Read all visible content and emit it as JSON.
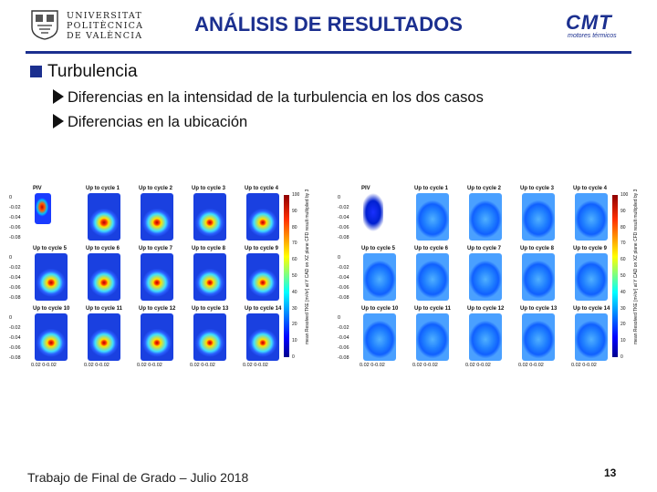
{
  "header": {
    "title": "ANÁLISIS DE RESULTADOS",
    "upv_logo_text": "UNIVERSITAT\nPOLITÈCNICA\nDE VALÈNCIA",
    "cmt_logo_text": "CMT",
    "cmt_logo_subtitle": "motores térmicos",
    "accent_color": "#1b2f8f"
  },
  "bullets": {
    "level1": "Turbulencia",
    "level2": [
      "Diferencias en la intensidad de la turbulencia en los dos casos",
      "Diferencias en la ubicación"
    ]
  },
  "figure": {
    "cell_titles": [
      "PIV",
      "Up to cycle 1",
      "Up to cycle 2",
      "Up to cycle 3",
      "Up to cycle 4",
      "Up to cycle 5",
      "Up to cycle 6",
      "Up to cycle 7",
      "Up to cycle 8",
      "Up to cycle 9",
      "Up to cycle 10",
      "Up to cycle 11",
      "Up to cycle 12",
      "Up to cycle 13",
      "Up to cycle 14"
    ],
    "y_ticks": [
      "0",
      "-0.02",
      "-0.04",
      "-0.06",
      "-0.08"
    ],
    "x_tick": "0.02 0-0.02",
    "colorbar_ticks": [
      "100",
      "90",
      "80",
      "70",
      "60",
      "50",
      "40",
      "30",
      "20",
      "10",
      "0"
    ],
    "left_colorbar_label": "mean Resolved TKE [m²/s²] at Y CAD on XZ plane CFD result multiplied by 3",
    "right_colorbar_label": "mean Resolved TKE [m²/s²] at Y CAD on XZ plane CFD result multiplied by 3",
    "left_intensity": [
      0.95,
      0.9,
      0.8,
      0.75,
      0.7,
      0.8,
      0.78,
      0.72,
      0.7,
      0.68,
      0.75,
      0.72,
      0.7,
      0.68,
      0.66
    ],
    "right_intensity": [
      0.35,
      0.3,
      0.2,
      0.18,
      0.17,
      0.2,
      0.18,
      0.17,
      0.16,
      0.16,
      0.18,
      0.17,
      0.16,
      0.16,
      0.15
    ]
  },
  "footer": {
    "text": "Trabajo de Final de Grado – Julio 2018",
    "page_number": "13"
  }
}
